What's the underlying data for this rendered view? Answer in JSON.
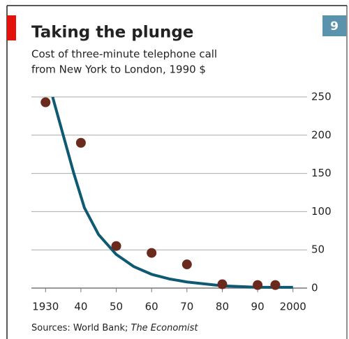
{
  "badge": "9",
  "chart_data": {
    "type": "scatter",
    "title": "Taking the plunge",
    "subtitle": [
      "Cost of three-minute telephone call",
      "from New York to London, 1990 $"
    ],
    "source": {
      "text": "Sources: World Bank;",
      "italic": "The Economist"
    },
    "series": [
      {
        "type": "scatter",
        "color": "#6b2a1e",
        "x": [
          1930,
          1940,
          1950,
          1960,
          1970,
          1980,
          1990,
          1995
        ],
        "values": [
          243,
          190,
          55,
          46,
          31,
          5,
          4,
          4
        ]
      },
      {
        "type": "line",
        "color": "#0e5a73",
        "x": [
          1932,
          1935,
          1938,
          1941,
          1945,
          1950,
          1955,
          1960,
          1965,
          1970,
          1980,
          1990,
          2000
        ],
        "values": [
          250,
          200,
          150,
          105,
          70,
          44,
          28,
          18,
          12,
          8,
          3,
          1,
          1
        ]
      }
    ],
    "xlim": [
      1926,
      2004
    ],
    "xticks": [
      1930,
      {
        "value": 1940,
        "label": "40"
      },
      {
        "value": 1950,
        "label": "50"
      },
      {
        "value": 1960,
        "label": "60"
      },
      {
        "value": 1970,
        "label": "70"
      },
      {
        "value": 1980,
        "label": "80"
      },
      {
        "value": 1990,
        "label": "90"
      },
      2000
    ],
    "ylim": [
      0,
      250
    ],
    "yticks": [
      0,
      50,
      100,
      150,
      200,
      250
    ],
    "grid": true
  }
}
